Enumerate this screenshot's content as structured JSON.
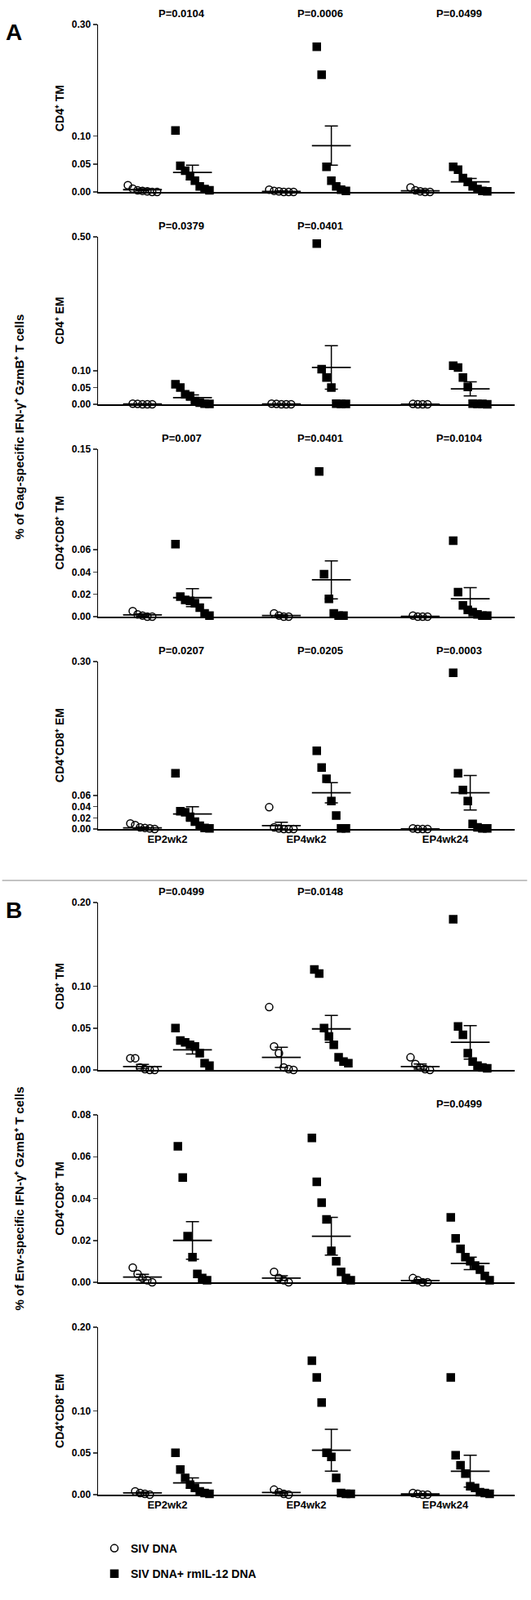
{
  "chart_data": {
    "type": "scatter",
    "grid": false,
    "legend": "bottom left",
    "series": [
      {
        "name": "SIV DNA",
        "color": "#000000",
        "marker": "triangle-open"
      },
      {
        "name": "SIV DNA+ rmIL-12 DNA",
        "color": "#000000",
        "marker": "square"
      }
    ],
    "panels": [
      {
        "label": "A",
        "y_label": "% of Gag-specific IFN-γ⁺ GzmB⁺ T cells",
        "categories": [
          "EP2wk2",
          "EP4wk2",
          "EP4wk24"
        ],
        "charts": [
          {
            "y_label": "CD4⁺ TM",
            "ylim": [
              0,
              0.3
            ],
            "yticks": [
              {
                "value": 0,
                "label": "0.00"
              },
              0.05,
              {
                "value": 0.1,
                "label": "0.10"
              },
              {
                "value": 0.3,
                "label": "0.30"
              }
            ],
            "p_values": [
              "P=0.0104",
              "P=0.0006",
              "P=0.0499"
            ],
            "data": [
              {
                "values": [
                  [
                    0.012,
                    0.006,
                    0.003,
                    0.002,
                    0.001,
                    0,
                    0
                  ],
                  [
                    0.004,
                    0.002,
                    0.001,
                    0,
                    0,
                    0
                  ],
                  [
                    0.008,
                    0.003,
                    0.001,
                    0,
                    0
                  ]
                ],
                "mean": [
                  0.004,
                  0.001,
                  0.002
                ],
                "sem": [
                  0.002,
                  0.001,
                  0.0015
                ]
              },
              {
                "values": [
                  [
                    0.11,
                    0.047,
                    0.038,
                    0.028,
                    0.02,
                    0.01,
                    0.005,
                    0.003
                  ],
                  [
                    0.26,
                    0.21,
                    0.045,
                    0.02,
                    0.01,
                    0.004,
                    0.002
                  ],
                  [
                    0.045,
                    0.04,
                    0.025,
                    0.018,
                    0.01,
                    0.005,
                    0.002,
                    0.001
                  ]
                ],
                "mean": [
                  0.035,
                  0.083,
                  0.018
                ],
                "sem": [
                  0.013,
                  0.035,
                  0.006
                ]
              }
            ]
          },
          {
            "y_label": "CD4⁺ EM",
            "ylim": [
              0,
              0.5
            ],
            "yticks": [
              {
                "value": 0,
                "label": "0.00"
              },
              0.05,
              {
                "value": 0.1,
                "label": "0.10"
              },
              {
                "value": 0.5,
                "label": "0.50"
              }
            ],
            "p_values": [
              "P=0.0379",
              "P=0.0401",
              null
            ],
            "data": [
              {
                "values": [
                  [
                    0.002,
                    0.001,
                    0,
                    0,
                    0
                  ],
                  [
                    0.002,
                    0.001,
                    0,
                    0,
                    0
                  ],
                  [
                    0.001,
                    0,
                    0,
                    0
                  ]
                ],
                "mean": [
                  0.0006,
                  0.0006,
                  0.0003
                ],
                "sem": [
                  0.0004,
                  0.0004,
                  0.0003
                ]
              },
              {
                "values": [
                  [
                    0.06,
                    0.05,
                    0.03,
                    0.025,
                    0.01,
                    0.005,
                    0.002,
                    0.001
                  ],
                  [
                    0.48,
                    0.105,
                    0.08,
                    0.05,
                    0.002,
                    0.001,
                    0.001
                  ],
                  [
                    0.115,
                    0.11,
                    0.08,
                    0.052,
                    0.002,
                    0.001,
                    0.001,
                    0
                  ]
                ],
                "mean": [
                  0.02,
                  0.11,
                  0.046
                ],
                "sem": [
                  0.008,
                  0.065,
                  0.021
                ]
              }
            ]
          },
          {
            "y_label": "CD4⁺CD8⁺ TM",
            "ylim": [
              0,
              0.15
            ],
            "yticks": [
              {
                "value": 0,
                "label": "0.00"
              },
              0.02,
              0.04,
              0.06,
              0.15
            ],
            "p_values": [
              "P=0.007",
              "P=0.0401",
              "P=0.0104"
            ],
            "data": [
              {
                "values": [
                  [
                    0.005,
                    0.002,
                    0.001,
                    0,
                    0
                  ],
                  [
                    0.003,
                    0.001,
                    0,
                    0
                  ],
                  [
                    0.001,
                    0,
                    0,
                    0
                  ]
                ],
                "mean": [
                  0.0016,
                  0.001,
                  0.0003
                ],
                "sem": [
                  0.001,
                  0.0007,
                  0.0003
                ]
              },
              {
                "values": [
                  [
                    0.065,
                    0.018,
                    0.015,
                    0.014,
                    0.012,
                    0.008,
                    0.003,
                    0.001
                  ],
                  [
                    0.13,
                    0.038,
                    0.016,
                    0.003,
                    0.001,
                    0.001
                  ],
                  [
                    0.068,
                    0.022,
                    0.01,
                    0.006,
                    0.004,
                    0.002,
                    0.001,
                    0.001
                  ]
                ],
                "mean": [
                  0.017,
                  0.033,
                  0.016
                ],
                "sem": [
                  0.008,
                  0.017,
                  0.01
                ]
              }
            ]
          },
          {
            "y_label": "CD4⁺CD8⁺ EM",
            "ylim": [
              0,
              0.3
            ],
            "yticks": [
              {
                "value": 0,
                "label": "0.00"
              },
              0.02,
              0.04,
              0.06,
              {
                "value": 0.3,
                "label": "0.30"
              }
            ],
            "p_values": [
              "P=0.0207",
              "P=0.0205",
              "P=0.0003"
            ],
            "data": [
              {
                "values": [
                  [
                    0.01,
                    0.007,
                    0.003,
                    0.002,
                    0.001,
                    0
                  ],
                  [
                    0.039,
                    0.003,
                    0.001,
                    0,
                    0,
                    0
                  ],
                  [
                    0.001,
                    0,
                    0,
                    0
                  ]
                ],
                "mean": [
                  0.002,
                  0.006,
                  0.0003
                ],
                "sem": [
                  0.0015,
                  0.006,
                  0.0003
                ]
              },
              {
                "values": [
                  [
                    0.1,
                    0.032,
                    0.03,
                    0.022,
                    0.013,
                    0.006,
                    0.002,
                    0.001
                  ],
                  [
                    0.14,
                    0.11,
                    0.09,
                    0.05,
                    0.024,
                    0.001,
                    0.001
                  ],
                  [
                    0.28,
                    0.1,
                    0.07,
                    0.05,
                    0.009,
                    0.003,
                    0.001,
                    0.001
                  ]
                ],
                "mean": [
                  0.027,
                  0.065,
                  0.065
                ],
                "sem": [
                  0.013,
                  0.018,
                  0.031
                ]
              }
            ]
          }
        ]
      },
      {
        "label": "B",
        "y_label": "% of Env-specific IFN-γ⁺ GzmB⁺ T cells",
        "categories": [
          "EP2wk2",
          "EP4wk2",
          "EP4wk24"
        ],
        "charts": [
          {
            "y_label": "CD8⁺ TM",
            "ylim": [
              0,
              0.2
            ],
            "yticks": [
              {
                "value": 0,
                "label": "0.00"
              },
              0.05,
              {
                "value": 0.1,
                "label": "0.10"
              },
              {
                "value": 0.2,
                "label": "0.20"
              }
            ],
            "p_values": [
              "P=0.0499",
              "P=0.0148",
              null
            ],
            "data": [
              {
                "values": [
                  [
                    0.014,
                    0.014,
                    0.003,
                    0.001,
                    0,
                    0
                  ],
                  [
                    0.075,
                    0.028,
                    0.02,
                    0.003,
                    0.001,
                    0
                  ],
                  [
                    0.015,
                    0.007,
                    0.003,
                    0.001,
                    0
                  ]
                ],
                "mean": [
                  0.004,
                  0.015,
                  0.004
                ],
                "sem": [
                  0.0025,
                  0.012,
                  0.003
                ]
              },
              {
                "values": [
                  [
                    0.05,
                    0.035,
                    0.033,
                    0.03,
                    0.028,
                    0.02,
                    0.008,
                    0.005
                  ],
                  [
                    0.12,
                    0.115,
                    0.05,
                    0.04,
                    0.03,
                    0.015,
                    0.01,
                    0.008
                  ],
                  [
                    0.18,
                    0.052,
                    0.042,
                    0.02,
                    0.01,
                    0.005,
                    0.003,
                    0.002
                  ]
                ],
                "mean": [
                  0.024,
                  0.049,
                  0.033
                ],
                "sem": [
                  0.005,
                  0.016,
                  0.02
                ]
              }
            ]
          },
          {
            "y_label": "CD4⁺CD8⁺ TM",
            "ylim": [
              0,
              0.08
            ],
            "yticks": [
              {
                "value": 0,
                "label": "0.00"
              },
              0.02,
              0.04,
              0.06,
              0.08
            ],
            "p_values": [
              null,
              null,
              "P=0.0499"
            ],
            "data": [
              {
                "values": [
                  [
                    0.007,
                    0.004,
                    0.002,
                    0.001,
                    0
                  ],
                  [
                    0.005,
                    0.002,
                    0.001,
                    0
                  ],
                  [
                    0.002,
                    0.001,
                    0,
                    0
                  ]
                ],
                "mean": [
                  0.0025,
                  0.002,
                  0.0008
                ],
                "sem": [
                  0.0013,
                  0.0011,
                  0.0005
                ]
              },
              {
                "values": [
                  [
                    0.065,
                    0.05,
                    0.022,
                    0.012,
                    0.004,
                    0.002,
                    0.001
                  ],
                  [
                    0.069,
                    0.048,
                    0.038,
                    0.03,
                    0.015,
                    0.01,
                    0.005,
                    0.002,
                    0.001
                  ],
                  [
                    0.031,
                    0.021,
                    0.016,
                    0.012,
                    0.01,
                    0.008,
                    0.006,
                    0.003,
                    0.001
                  ]
                ],
                "mean": [
                  0.02,
                  0.022,
                  0.009
                ],
                "sem": [
                  0.009,
                  0.009,
                  0.003
                ]
              }
            ]
          },
          {
            "y_label": "CD4⁺CD8⁺ EM",
            "ylim": [
              0,
              0.2
            ],
            "yticks": [
              {
                "value": 0,
                "label": "0.00"
              },
              0.05,
              {
                "value": 0.1,
                "label": "0.10"
              },
              {
                "value": 0.2,
                "label": "0.20"
              }
            ],
            "p_values": [
              null,
              null,
              null
            ],
            "data": [
              {
                "values": [
                  [
                    0.004,
                    0.002,
                    0.001,
                    0
                  ],
                  [
                    0.006,
                    0.003,
                    0.001,
                    0
                  ],
                  [
                    0.002,
                    0.001,
                    0,
                    0
                  ]
                ],
                "mean": [
                  0.002,
                  0.0025,
                  0.0008
                ],
                "sem": [
                  0.0009,
                  0.0013,
                  0.0005
                ]
              },
              {
                "values": [
                  [
                    0.05,
                    0.03,
                    0.02,
                    0.012,
                    0.008,
                    0.004,
                    0.002,
                    0.001
                  ],
                  [
                    0.16,
                    0.14,
                    0.11,
                    0.05,
                    0.045,
                    0.02,
                    0.002,
                    0.001,
                    0.001
                  ],
                  [
                    0.14,
                    0.047,
                    0.035,
                    0.025,
                    0.01,
                    0.008,
                    0.003,
                    0.002,
                    0.001
                  ]
                ],
                "mean": [
                  0.014,
                  0.053,
                  0.028
                ],
                "sem": [
                  0.006,
                  0.025,
                  0.019
                ]
              }
            ]
          }
        ]
      }
    ]
  }
}
